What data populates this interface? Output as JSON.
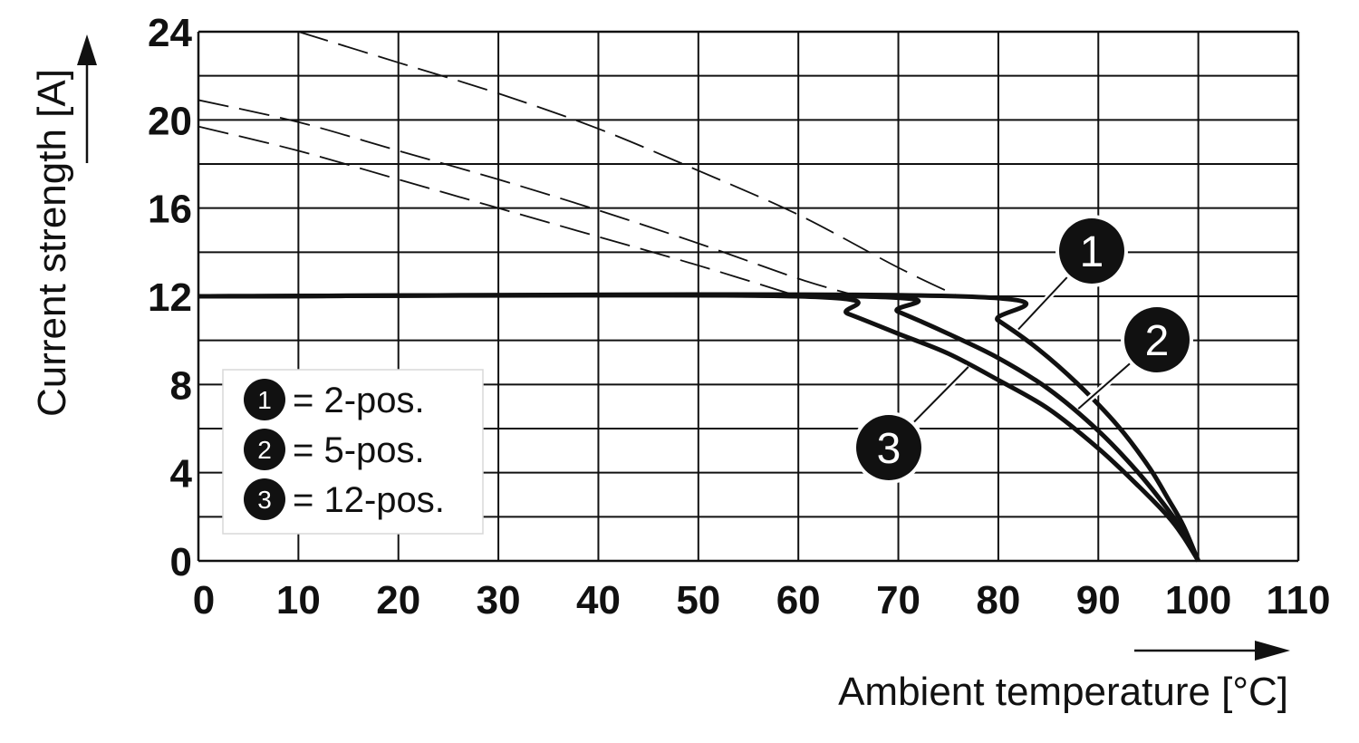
{
  "chart_data": {
    "type": "line",
    "xlabel": "Ambient temperature [°C]",
    "ylabel": "Current strength [A]",
    "xlim": [
      0,
      110
    ],
    "ylim": [
      0,
      24
    ],
    "x_ticks": [
      0,
      10,
      20,
      30,
      40,
      50,
      60,
      70,
      80,
      90,
      100,
      110
    ],
    "y_ticks": [
      0,
      4,
      8,
      12,
      16,
      20,
      24
    ],
    "grid": true,
    "legend_position": "bottom-left",
    "legend": [
      {
        "marker": "1",
        "label": "= 2-pos."
      },
      {
        "marker": "2",
        "label": "= 5-pos."
      },
      {
        "marker": "3",
        "label": "= 12-pos."
      }
    ],
    "series": [
      {
        "marker": "1",
        "style": "solid",
        "x": [
          0,
          76,
          80,
          84,
          88,
          92,
          95,
          97,
          98.5,
          100
        ],
        "y": [
          12,
          12,
          10.9,
          9.6,
          8.0,
          6.1,
          4.3,
          2.8,
          1.6,
          0
        ]
      },
      {
        "marker": "2",
        "style": "solid",
        "x": [
          0,
          66,
          70,
          75,
          80,
          85,
          90,
          94,
          97,
          98.5,
          100
        ],
        "y": [
          12,
          12,
          11.3,
          10.3,
          9.2,
          7.8,
          5.9,
          4.0,
          2.3,
          1.3,
          0
        ]
      },
      {
        "marker": "3",
        "style": "solid",
        "x": [
          0,
          60,
          65,
          70,
          75,
          80,
          85,
          90,
          94,
          97,
          98.5,
          100
        ],
        "y": [
          12,
          12,
          11.2,
          10.3,
          9.4,
          8.2,
          6.9,
          5.1,
          3.4,
          2.0,
          1.1,
          0
        ]
      },
      {
        "marker": "1",
        "style": "dashed",
        "x": [
          10,
          20,
          30,
          40,
          50,
          60,
          70,
          76
        ],
        "y": [
          24,
          22.6,
          21.2,
          19.6,
          17.7,
          15.7,
          13.3,
          12
        ]
      },
      {
        "marker": "2",
        "style": "dashed",
        "x": [
          0,
          10,
          20,
          30,
          40,
          50,
          60,
          66
        ],
        "y": [
          20.9,
          19.9,
          18.6,
          17.3,
          15.9,
          14.4,
          12.8,
          12
        ]
      },
      {
        "marker": "3",
        "style": "dashed",
        "x": [
          0,
          10,
          20,
          30,
          40,
          50,
          60
        ],
        "y": [
          19.7,
          18.6,
          17.3,
          16.0,
          14.7,
          13.4,
          12
        ]
      }
    ],
    "callouts": [
      {
        "label": "1",
        "at_x": 82,
        "at_y": 10.5
      },
      {
        "label": "2",
        "at_x": 88,
        "at_y": 6.9
      },
      {
        "label": "3",
        "at_x": 77,
        "at_y": 8.8
      }
    ]
  }
}
